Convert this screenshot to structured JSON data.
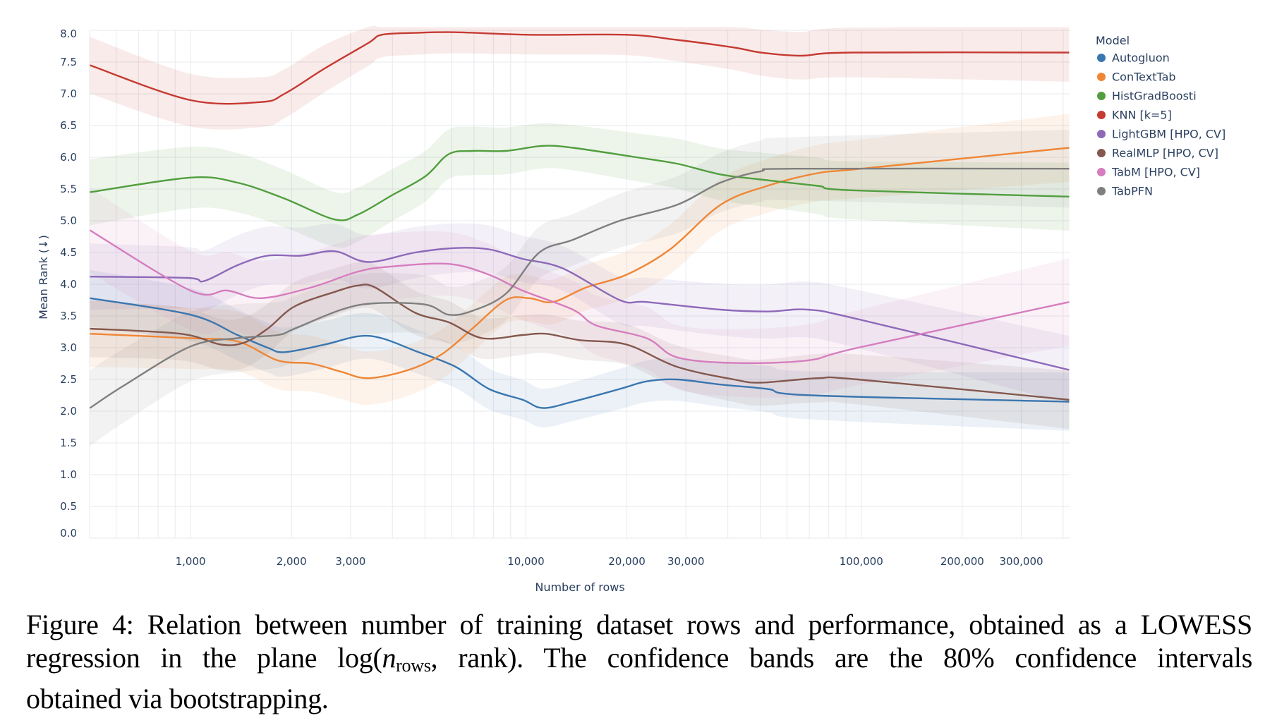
{
  "chart_data": {
    "type": "line",
    "title": "",
    "xlabel": "Number of rows",
    "ylabel": "Mean Rank (↓)",
    "x_scale": "log",
    "x_unit": "log10(n_rows)",
    "xlim_rows": [
      500,
      420000
    ],
    "ylim": [
      0,
      8
    ],
    "grid": true,
    "x_ticks": [
      {
        "value": 1000,
        "label": "1,000"
      },
      {
        "value": 2000,
        "label": "2,000"
      },
      {
        "value": 3000,
        "label": "3,000"
      },
      {
        "value": 10000,
        "label": "10,000"
      },
      {
        "value": 20000,
        "label": "20,000"
      },
      {
        "value": 30000,
        "label": "30,000"
      },
      {
        "value": 100000,
        "label": "100,000"
      },
      {
        "value": 200000,
        "label": "200,000"
      },
      {
        "value": 300000,
        "label": "300,000"
      }
    ],
    "y_ticks": [
      "0.0",
      "0.5",
      "1.0",
      "1.5",
      "2.0",
      "2.5",
      "3.0",
      "3.5",
      "4.0",
      "4.5",
      "5.0",
      "5.5",
      "6.0",
      "6.5",
      "7.0",
      "7.5",
      "8.0"
    ],
    "legend": {
      "title": "Model",
      "placement": "top-right-outside"
    },
    "band_description": "80% confidence interval (bootstrap)",
    "series": [
      {
        "name": "Autogluon",
        "color": "#3a76af",
        "band_halfwidth": 0.3,
        "points": [
          [
            2.7,
            3.78
          ],
          [
            3.0,
            3.52
          ],
          [
            3.14,
            3.2
          ],
          [
            3.23,
            3.0
          ],
          [
            3.28,
            2.93
          ],
          [
            3.4,
            3.05
          ],
          [
            3.5,
            3.18
          ],
          [
            3.57,
            3.15
          ],
          [
            3.67,
            2.95
          ],
          [
            3.79,
            2.7
          ],
          [
            3.89,
            2.35
          ],
          [
            3.99,
            2.18
          ],
          [
            4.05,
            2.05
          ],
          [
            4.14,
            2.15
          ],
          [
            4.28,
            2.35
          ],
          [
            4.36,
            2.47
          ],
          [
            4.45,
            2.5
          ],
          [
            4.58,
            2.42
          ],
          [
            4.72,
            2.35
          ],
          [
            4.85,
            2.25
          ],
          [
            5.62,
            2.15
          ]
        ]
      },
      {
        "name": "ConTextTab",
        "color": "#ef8636",
        "band_halfwidth": 0.35,
        "points": [
          [
            2.7,
            3.22
          ],
          [
            3.0,
            3.15
          ],
          [
            3.14,
            3.1
          ],
          [
            3.26,
            2.8
          ],
          [
            3.36,
            2.75
          ],
          [
            3.45,
            2.62
          ],
          [
            3.53,
            2.52
          ],
          [
            3.65,
            2.65
          ],
          [
            3.75,
            2.9
          ],
          [
            3.84,
            3.3
          ],
          [
            3.94,
            3.75
          ],
          [
            4.01,
            3.78
          ],
          [
            4.08,
            3.72
          ],
          [
            4.18,
            3.95
          ],
          [
            4.3,
            4.15
          ],
          [
            4.43,
            4.55
          ],
          [
            4.58,
            5.25
          ],
          [
            4.72,
            5.55
          ],
          [
            4.87,
            5.75
          ],
          [
            5.0,
            5.82
          ],
          [
            5.62,
            6.15
          ]
        ]
      },
      {
        "name": "HistGradBoosti",
        "color": "#519e3e",
        "band_halfwidth": 0.35,
        "points": [
          [
            2.7,
            5.45
          ],
          [
            3.0,
            5.68
          ],
          [
            3.14,
            5.6
          ],
          [
            3.28,
            5.35
          ],
          [
            3.43,
            5.02
          ],
          [
            3.5,
            5.1
          ],
          [
            3.6,
            5.4
          ],
          [
            3.7,
            5.7
          ],
          [
            3.77,
            6.05
          ],
          [
            3.84,
            6.1
          ],
          [
            3.94,
            6.1
          ],
          [
            4.05,
            6.18
          ],
          [
            4.14,
            6.15
          ],
          [
            4.33,
            6.0
          ],
          [
            4.45,
            5.9
          ],
          [
            4.58,
            5.73
          ],
          [
            4.7,
            5.65
          ],
          [
            4.87,
            5.55
          ],
          [
            4.97,
            5.48
          ],
          [
            5.62,
            5.38
          ]
        ]
      },
      {
        "name": "KNN [k=5]",
        "color": "#c53a32",
        "band_halfwidth": 0.3,
        "points": [
          [
            2.7,
            7.45
          ],
          [
            3.0,
            6.9
          ],
          [
            3.21,
            6.87
          ],
          [
            3.28,
            7.0
          ],
          [
            3.4,
            7.4
          ],
          [
            3.53,
            7.8
          ],
          [
            3.57,
            7.93
          ],
          [
            3.67,
            7.96
          ],
          [
            3.79,
            7.97
          ],
          [
            4.01,
            7.93
          ],
          [
            4.3,
            7.93
          ],
          [
            4.45,
            7.85
          ],
          [
            4.62,
            7.73
          ],
          [
            4.7,
            7.65
          ],
          [
            4.82,
            7.6
          ],
          [
            4.97,
            7.65
          ],
          [
            5.62,
            7.65
          ]
        ]
      },
      {
        "name": "LightGBM [HPO, CV]",
        "color": "#8d69b8",
        "band_halfwidth": 0.35,
        "points": [
          [
            2.7,
            4.12
          ],
          [
            2.99,
            4.1
          ],
          [
            3.04,
            4.05
          ],
          [
            3.14,
            4.3
          ],
          [
            3.23,
            4.45
          ],
          [
            3.33,
            4.45
          ],
          [
            3.43,
            4.52
          ],
          [
            3.53,
            4.35
          ],
          [
            3.67,
            4.5
          ],
          [
            3.79,
            4.57
          ],
          [
            3.89,
            4.55
          ],
          [
            3.99,
            4.4
          ],
          [
            4.11,
            4.25
          ],
          [
            4.28,
            3.75
          ],
          [
            4.36,
            3.72
          ],
          [
            4.58,
            3.6
          ],
          [
            4.72,
            3.57
          ],
          [
            4.84,
            3.6
          ],
          [
            4.99,
            3.45
          ],
          [
            5.62,
            2.65
          ]
        ]
      },
      {
        "name": "RealMLP [HPO, CV]",
        "color": "#84584e",
        "band_halfwidth": 0.3,
        "points": [
          [
            2.7,
            3.3
          ],
          [
            2.97,
            3.22
          ],
          [
            3.09,
            3.05
          ],
          [
            3.16,
            3.08
          ],
          [
            3.23,
            3.3
          ],
          [
            3.31,
            3.65
          ],
          [
            3.43,
            3.88
          ],
          [
            3.5,
            3.98
          ],
          [
            3.55,
            3.95
          ],
          [
            3.67,
            3.55
          ],
          [
            3.77,
            3.4
          ],
          [
            3.87,
            3.15
          ],
          [
            3.99,
            3.2
          ],
          [
            4.06,
            3.22
          ],
          [
            4.16,
            3.12
          ],
          [
            4.3,
            3.05
          ],
          [
            4.45,
            2.7
          ],
          [
            4.62,
            2.5
          ],
          [
            4.7,
            2.45
          ],
          [
            4.87,
            2.52
          ],
          [
            4.99,
            2.5
          ],
          [
            5.62,
            2.18
          ]
        ]
      },
      {
        "name": "TabM [HPO, CV]",
        "color": "#d57dbe",
        "band_halfwidth": 0.45,
        "points": [
          [
            2.7,
            4.85
          ],
          [
            3.0,
            3.9
          ],
          [
            3.11,
            3.9
          ],
          [
            3.21,
            3.78
          ],
          [
            3.36,
            3.95
          ],
          [
            3.5,
            4.2
          ],
          [
            3.6,
            4.28
          ],
          [
            3.77,
            4.32
          ],
          [
            3.89,
            4.15
          ],
          [
            3.99,
            3.9
          ],
          [
            4.14,
            3.6
          ],
          [
            4.21,
            3.35
          ],
          [
            4.36,
            3.15
          ],
          [
            4.45,
            2.85
          ],
          [
            4.62,
            2.76
          ],
          [
            4.84,
            2.8
          ],
          [
            4.99,
            3.0
          ],
          [
            5.62,
            3.72
          ]
        ]
      },
      {
        "name": "TabPFN",
        "color": "#7f7f7f",
        "band_halfwidth": 0.4,
        "points": [
          [
            2.7,
            2.05
          ],
          [
            2.8,
            2.4
          ],
          [
            3.0,
            3.02
          ],
          [
            3.14,
            3.15
          ],
          [
            3.26,
            3.2
          ],
          [
            3.31,
            3.3
          ],
          [
            3.45,
            3.6
          ],
          [
            3.55,
            3.7
          ],
          [
            3.7,
            3.68
          ],
          [
            3.77,
            3.52
          ],
          [
            3.84,
            3.58
          ],
          [
            3.94,
            3.85
          ],
          [
            4.04,
            4.5
          ],
          [
            4.14,
            4.7
          ],
          [
            4.28,
            5.0
          ],
          [
            4.45,
            5.25
          ],
          [
            4.58,
            5.6
          ],
          [
            4.7,
            5.78
          ],
          [
            4.8,
            5.82
          ],
          [
            5.62,
            5.82
          ]
        ]
      }
    ]
  },
  "caption": {
    "line1": "Figure 4: Relation between number of training dataset rows and performance, obtained as a LOWESS",
    "line2_pre": "regression in the plane log(",
    "line2_var": "n",
    "line2_sub": "rows",
    "line2_post": ", rank).  The confidence bands are the 80% confidence intervals",
    "line3": "obtained via bootstrapping."
  }
}
